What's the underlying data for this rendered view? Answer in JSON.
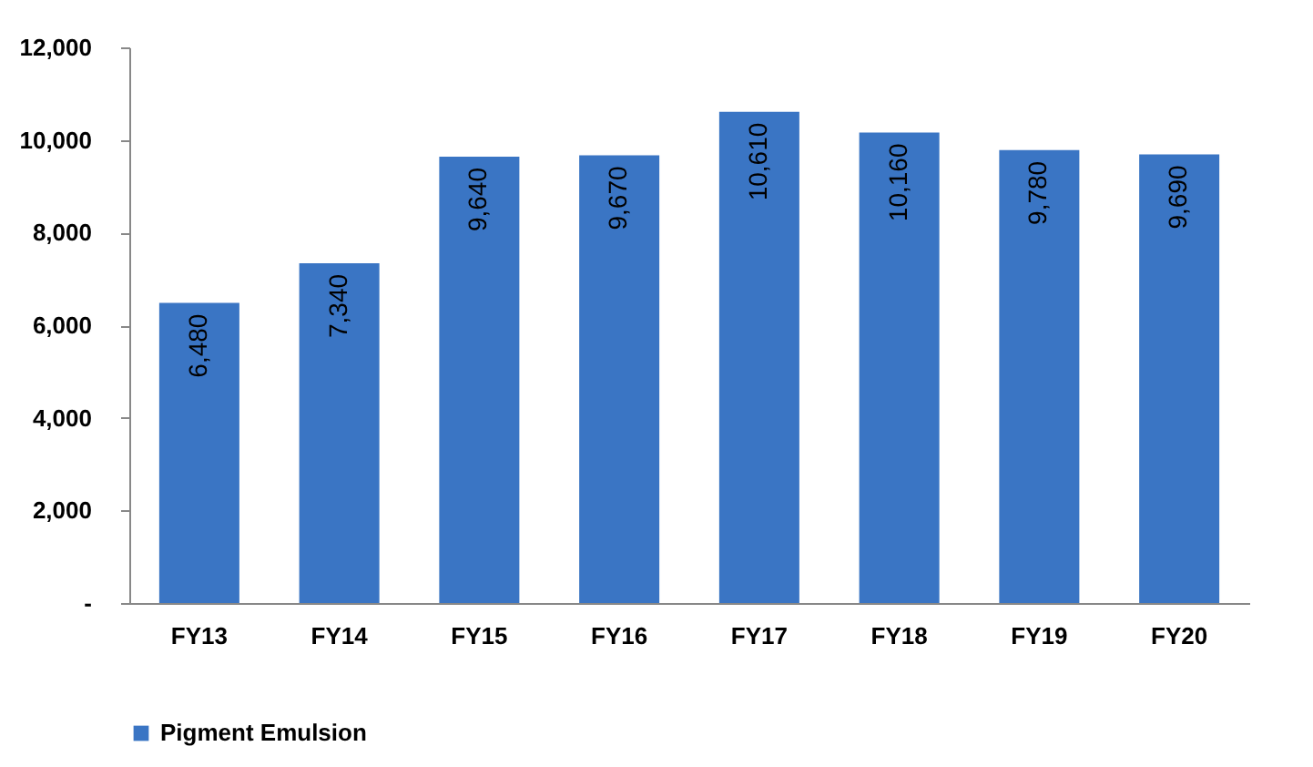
{
  "chart_data": {
    "type": "bar",
    "categories": [
      "FY13",
      "FY14",
      "FY15",
      "FY16",
      "FY17",
      "FY18",
      "FY19",
      "FY20"
    ],
    "series": [
      {
        "name": "Pigment Emulsion",
        "color": "#3a75c4",
        "values": [
          6480,
          7340,
          9640,
          9670,
          10610,
          10160,
          9780,
          9690
        ],
        "value_labels": [
          "6,480",
          "7,340",
          "9,640",
          "9,670",
          "10,610",
          "10,160",
          "9,780",
          "9,690"
        ]
      }
    ],
    "ylim": [
      0,
      12000
    ],
    "yticks": [
      {
        "value": 0,
        "label": "-"
      },
      {
        "value": 2000,
        "label": "2,000"
      },
      {
        "value": 4000,
        "label": "4,000"
      },
      {
        "value": 6000,
        "label": "6,000"
      },
      {
        "value": 8000,
        "label": "8,000"
      },
      {
        "value": 10000,
        "label": "10,000"
      },
      {
        "value": 12000,
        "label": "12,000"
      }
    ],
    "grid": false,
    "legend": "bottom"
  }
}
